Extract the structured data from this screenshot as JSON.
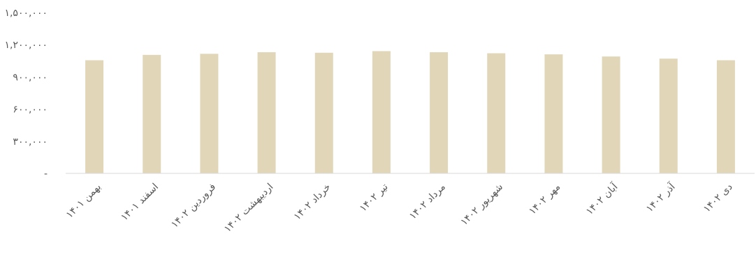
{
  "chart_data": {
    "type": "bar",
    "categories": [
      "بهمن ۱۴۰۱",
      "اسفند ۱۴۰۱",
      "فروردین ۱۴۰۲",
      "اردیبهشت ۱۴۰۲",
      "خرداد ۱۴۰۲",
      "تیر ۱۴۰۲",
      "مرداد ۱۴۰۲",
      "شهریور ۱۴۰۲",
      "مهر ۱۴۰۲",
      "آبان ۱۴۰۲",
      "آذر ۱۴۰۲",
      "دی ۱۴۰۲"
    ],
    "values": [
      1055000,
      1105000,
      1115000,
      1130000,
      1125000,
      1140000,
      1130000,
      1120000,
      1110000,
      1090000,
      1070000,
      1055000
    ],
    "ylim": [
      0,
      1500000
    ],
    "yticks": [
      0,
      300000,
      600000,
      900000,
      1200000,
      1500000
    ],
    "ytick_labels": [
      "-",
      "۳۰۰,۰۰۰",
      "۶۰۰,۰۰۰",
      "۹۰۰,۰۰۰",
      "۱,۲۰۰,۰۰۰",
      "۱,۵۰۰,۰۰۰"
    ],
    "grid": false,
    "bar_color": "#E2D6B9",
    "axis_color": "#D9D9D9",
    "text_color": "#595959"
  }
}
